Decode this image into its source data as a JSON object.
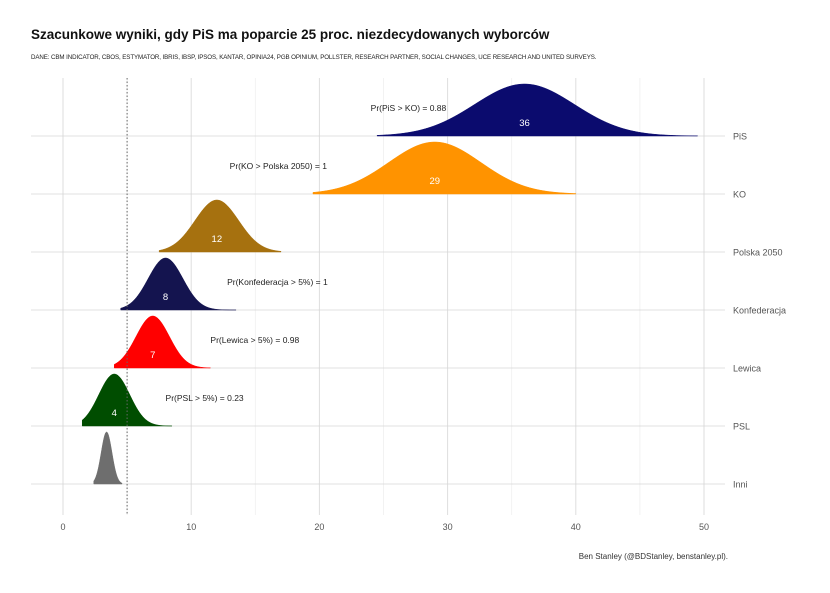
{
  "title": "Szacunkowe wyniki, gdy PiS ma poparcie 25 proc. niezdecydowanych wyborców",
  "subtitle": "DANE: CBM INDICATOR, CBOS, ESTYMATOR, IBRIS, IBSP, IPSOS, KANTAR, OPINIA24, PGB OPINIUM, POLLSTER, RESEARCH PARTNER, SOCIAL CHANGES, UCE RESEARCH AND UNITED SURVEYS.",
  "caption": "Ben Stanley (@BDStanley, benstanley.pl).",
  "chart_data": {
    "type": "ridgeline",
    "xlim": [
      -2,
      52
    ],
    "x_ticks": [
      0,
      10,
      20,
      30,
      40,
      50
    ],
    "threshold_line": 5,
    "grid": true,
    "series": [
      {
        "name": "PiS",
        "median": 36,
        "label": "36",
        "color": "#0b0b6e",
        "sd": 3.9,
        "range": [
          24.5,
          49.5
        ],
        "height": 1.0,
        "annotation": "Pr(PiS > KO) = 0.88",
        "annotation_x": 24.0
      },
      {
        "name": "KO",
        "median": 29,
        "label": "29",
        "color": "#ff9300",
        "sd": 3.6,
        "range": [
          19.5,
          40.0
        ],
        "height": 1.0,
        "annotation": "Pr(KO > Polska 2050) = 1",
        "annotation_x": 13.0
      },
      {
        "name": "Polska 2050",
        "median": 12,
        "label": "12",
        "color": "#a6710f",
        "sd": 1.7,
        "range": [
          7.5,
          17.0
        ],
        "height": 1.0,
        "annotation": "",
        "annotation_x": 0
      },
      {
        "name": "Konfederacja",
        "median": 8,
        "label": "8",
        "color": "#14144f",
        "sd": 1.35,
        "range": [
          4.5,
          13.5
        ],
        "height": 1.0,
        "annotation": "Pr(Konfederacja > 5%) = 1",
        "annotation_x": 12.8
      },
      {
        "name": "Lewica",
        "median": 7,
        "label": "7",
        "color": "#ff0000",
        "sd": 1.3,
        "range": [
          4.0,
          11.5
        ],
        "height": 1.0,
        "annotation": "Pr(Lewica > 5%) = 0.98",
        "annotation_x": 11.5
      },
      {
        "name": "PSL",
        "median": 4,
        "label": "4",
        "color": "#004d00",
        "sd": 1.2,
        "range": [
          1.5,
          8.5
        ],
        "height": 1.0,
        "annotation": "Pr(PSL > 5%) = 0.23",
        "annotation_x": 8.0
      },
      {
        "name": "Inni",
        "median": 3.4,
        "label": "",
        "color": "#6e6e6e",
        "sd": 0.42,
        "range": [
          2.4,
          4.6
        ],
        "height": 1.0,
        "annotation": "",
        "annotation_x": 0
      }
    ]
  }
}
